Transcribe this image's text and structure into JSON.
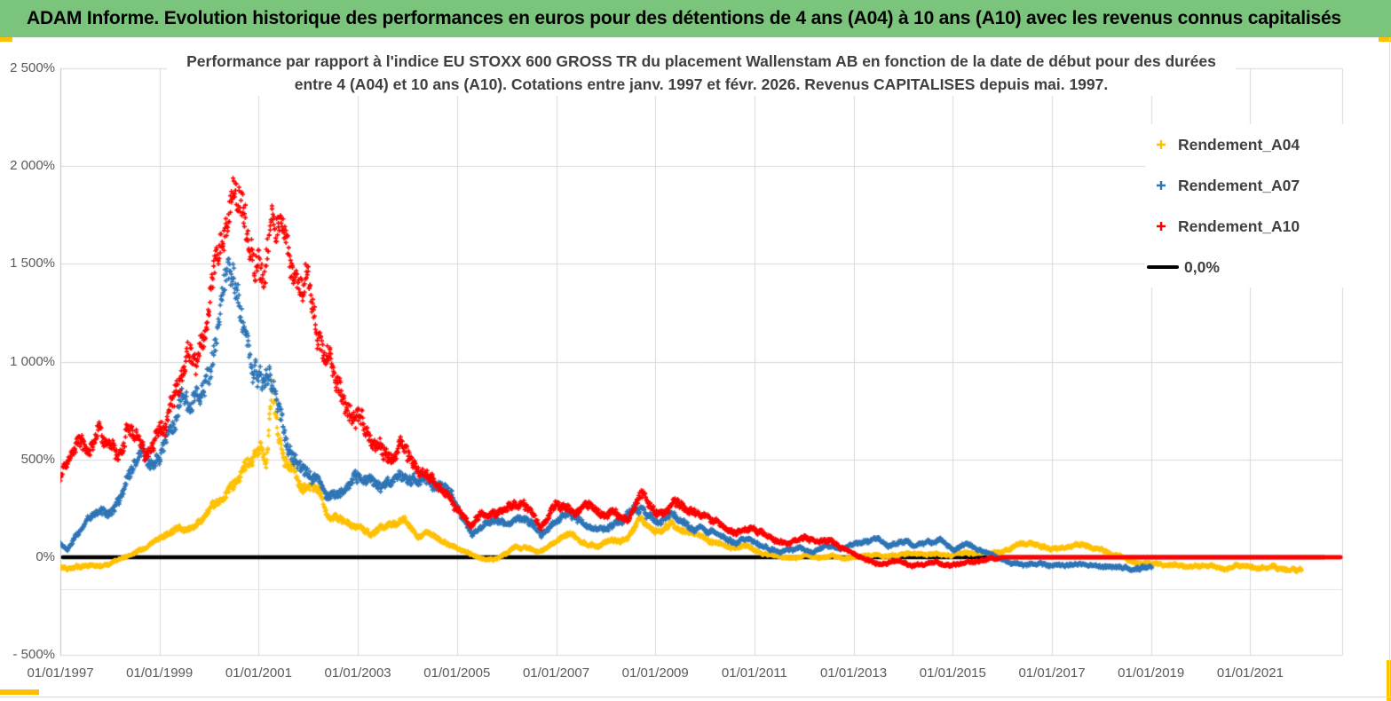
{
  "header": {
    "title": "ADAM Informe. Evolution historique des performances en euros pour des détentions de 4 ans (A04) à 10 ans (A10) avec les revenus connus capitalisés"
  },
  "accents": {
    "gold": "#FFC000",
    "header_green": "#7AC47C"
  },
  "chart_data": {
    "type": "scatter",
    "title_line1": "Performance par rapport à l'indice EU STOXX 600 GROSS TR  du placement Wallenstam AB en fonction de la date de début pour des durées",
    "title_line2": "entre 4 (A04) et 10 ans (A10). Cotations entre janv. 1997 et févr. 2026. Revenus CAPITALISES depuis mai. 1997.",
    "grid": "on",
    "legend_position": "right",
    "x_axis": {
      "tick_years": [
        1997,
        1999,
        2001,
        2003,
        2005,
        2007,
        2009,
        2011,
        2013,
        2015,
        2017,
        2019,
        2021
      ],
      "tick_labels": [
        "01/01/1997",
        "01/01/1999",
        "01/01/2001",
        "01/01/2003",
        "01/01/2005",
        "01/01/2007",
        "01/01/2009",
        "01/01/2011",
        "01/01/2013",
        "01/01/2015",
        "01/01/2017",
        "01/01/2019",
        "01/01/2021"
      ],
      "min_year": 1997.0,
      "max_year": 2022.86
    },
    "y_axis": {
      "tick_values": [
        2500,
        2000,
        1500,
        1000,
        500,
        0,
        -500
      ],
      "tick_labels": [
        "2 500%",
        "2 000%",
        "1 500%",
        "1 000%",
        "500%",
        "0%",
        "- 500%"
      ],
      "min": -500,
      "max": 2500,
      "extra_faint_line_value": -163
    },
    "legend": [
      {
        "label": "Rendement_A04",
        "marker": "plus",
        "color": "#FFC000"
      },
      {
        "label": "Rendement_A07",
        "marker": "plus",
        "color": "#2E75B6"
      },
      {
        "label": "Rendement_A10",
        "marker": "plus",
        "color": "#FF0000"
      },
      {
        "label": "0,0%",
        "marker": "line",
        "color": "#000000"
      }
    ],
    "reference_line": {
      "label": "0,0%",
      "value": 0,
      "from_year": 1997.05,
      "to_year": 2022.5,
      "color": "#000000"
    },
    "series": [
      {
        "name": "Rendement_A04",
        "color": "#FFC000",
        "points": [
          [
            1997.0,
            -55
          ],
          [
            1997.3,
            -48
          ],
          [
            1997.6,
            -42
          ],
          [
            1997.9,
            -35
          ],
          [
            1998.1,
            -22
          ],
          [
            1998.3,
            -5
          ],
          [
            1998.55,
            35
          ],
          [
            1998.8,
            60
          ],
          [
            1999.0,
            90
          ],
          [
            1999.2,
            125
          ],
          [
            1999.4,
            160
          ],
          [
            1999.55,
            145
          ],
          [
            1999.75,
            175
          ],
          [
            2000.0,
            225
          ],
          [
            2000.2,
            280
          ],
          [
            2000.4,
            345
          ],
          [
            2000.6,
            415
          ],
          [
            2000.8,
            465
          ],
          [
            2000.95,
            520
          ],
          [
            2001.05,
            590
          ],
          [
            2001.15,
            470
          ],
          [
            2001.27,
            860
          ],
          [
            2001.32,
            760
          ],
          [
            2001.42,
            610
          ],
          [
            2001.55,
            500
          ],
          [
            2001.7,
            450
          ],
          [
            2001.87,
            335
          ],
          [
            2002.05,
            385
          ],
          [
            2002.25,
            295
          ],
          [
            2002.45,
            195
          ],
          [
            2002.65,
            205
          ],
          [
            2002.85,
            160
          ],
          [
            2003.05,
            170
          ],
          [
            2003.25,
            120
          ],
          [
            2003.5,
            150
          ],
          [
            2003.75,
            165
          ],
          [
            2003.95,
            200
          ],
          [
            2004.2,
            115
          ],
          [
            2004.4,
            130
          ],
          [
            2004.65,
            90
          ],
          [
            2004.9,
            60
          ],
          [
            2005.15,
            25
          ],
          [
            2005.35,
            5
          ],
          [
            2005.55,
            -15
          ],
          [
            2005.8,
            -5
          ],
          [
            2006.0,
            25
          ],
          [
            2006.2,
            45
          ],
          [
            2006.4,
            55
          ],
          [
            2006.6,
            25
          ],
          [
            2006.9,
            60
          ],
          [
            2007.1,
            95
          ],
          [
            2007.3,
            110
          ],
          [
            2007.6,
            65
          ],
          [
            2007.9,
            65
          ],
          [
            2008.15,
            90
          ],
          [
            2008.4,
            85
          ],
          [
            2008.72,
            215
          ],
          [
            2009.0,
            130
          ],
          [
            2009.33,
            190
          ],
          [
            2009.6,
            130
          ],
          [
            2009.85,
            110
          ],
          [
            2010.1,
            90
          ],
          [
            2010.45,
            45
          ],
          [
            2010.8,
            60
          ],
          [
            2011.1,
            30
          ],
          [
            2011.45,
            8
          ],
          [
            2011.7,
            -8
          ],
          [
            2012.0,
            15
          ],
          [
            2012.3,
            -5
          ],
          [
            2012.55,
            12
          ],
          [
            2012.8,
            -8
          ],
          [
            2013.05,
            2
          ],
          [
            2013.35,
            12
          ],
          [
            2013.6,
            5
          ],
          [
            2013.9,
            12
          ],
          [
            2014.15,
            22
          ],
          [
            2014.4,
            12
          ],
          [
            2014.7,
            18
          ],
          [
            2014.95,
            12
          ],
          [
            2015.2,
            20
          ],
          [
            2015.5,
            15
          ],
          [
            2015.75,
            20
          ],
          [
            2016.0,
            28
          ],
          [
            2016.3,
            55
          ],
          [
            2016.55,
            70
          ],
          [
            2016.8,
            55
          ],
          [
            2017.1,
            45
          ],
          [
            2017.35,
            52
          ],
          [
            2017.62,
            70
          ],
          [
            2017.9,
            48
          ],
          [
            2018.15,
            22
          ],
          [
            2018.35,
            5
          ],
          [
            2018.55,
            -18
          ],
          [
            2018.8,
            -30
          ],
          [
            2019.05,
            -35
          ],
          [
            2019.4,
            -40
          ],
          [
            2019.8,
            -45
          ],
          [
            2020.15,
            -40
          ],
          [
            2020.5,
            -50
          ],
          [
            2020.85,
            -45
          ],
          [
            2021.2,
            -55
          ],
          [
            2021.6,
            -60
          ],
          [
            2022.05,
            -65
          ]
        ]
      },
      {
        "name": "Rendement_A07",
        "color": "#2E75B6",
        "points": [
          [
            1997.0,
            70
          ],
          [
            1997.15,
            35
          ],
          [
            1997.35,
            120
          ],
          [
            1997.55,
            190
          ],
          [
            1997.75,
            250
          ],
          [
            1997.95,
            230
          ],
          [
            1998.2,
            300
          ],
          [
            1998.45,
            420
          ],
          [
            1998.65,
            520
          ],
          [
            1998.85,
            460
          ],
          [
            1999.05,
            560
          ],
          [
            1999.25,
            680
          ],
          [
            1999.45,
            870
          ],
          [
            1999.6,
            760
          ],
          [
            1999.8,
            820
          ],
          [
            2000.0,
            930
          ],
          [
            2000.15,
            1120
          ],
          [
            2000.3,
            1420
          ],
          [
            2000.38,
            1540
          ],
          [
            2000.5,
            1440
          ],
          [
            2000.62,
            1220
          ],
          [
            2000.75,
            1020
          ],
          [
            2000.9,
            950
          ],
          [
            2001.05,
            900
          ],
          [
            2001.15,
            1000
          ],
          [
            2001.25,
            950
          ],
          [
            2001.4,
            760
          ],
          [
            2001.6,
            560
          ],
          [
            2001.8,
            480
          ],
          [
            2002.0,
            440
          ],
          [
            2002.2,
            390
          ],
          [
            2002.45,
            310
          ],
          [
            2002.7,
            330
          ],
          [
            2002.95,
            415
          ],
          [
            2003.2,
            395
          ],
          [
            2003.55,
            350
          ],
          [
            2003.85,
            430
          ],
          [
            2004.1,
            390
          ],
          [
            2004.4,
            370
          ],
          [
            2004.65,
            345
          ],
          [
            2004.9,
            300
          ],
          [
            2005.1,
            210
          ],
          [
            2005.3,
            115
          ],
          [
            2005.55,
            160
          ],
          [
            2005.8,
            185
          ],
          [
            2006.05,
            160
          ],
          [
            2006.35,
            205
          ],
          [
            2006.7,
            120
          ],
          [
            2007.0,
            185
          ],
          [
            2007.3,
            225
          ],
          [
            2007.65,
            150
          ],
          [
            2007.95,
            140
          ],
          [
            2008.3,
            185
          ],
          [
            2008.72,
            260
          ],
          [
            2009.0,
            180
          ],
          [
            2009.35,
            230
          ],
          [
            2009.65,
            160
          ],
          [
            2009.95,
            140
          ],
          [
            2010.3,
            110
          ],
          [
            2010.65,
            70
          ],
          [
            2010.9,
            95
          ],
          [
            2011.2,
            60
          ],
          [
            2011.55,
            20
          ],
          [
            2011.9,
            55
          ],
          [
            2012.2,
            30
          ],
          [
            2012.45,
            65
          ],
          [
            2012.7,
            40
          ],
          [
            2013.0,
            65
          ],
          [
            2013.25,
            85
          ],
          [
            2013.45,
            95
          ],
          [
            2013.7,
            60
          ],
          [
            2013.95,
            85
          ],
          [
            2014.2,
            65
          ],
          [
            2014.5,
            75
          ],
          [
            2014.7,
            95
          ],
          [
            2015.0,
            40
          ],
          [
            2015.3,
            62
          ],
          [
            2015.55,
            30
          ],
          [
            2015.85,
            10
          ],
          [
            2016.1,
            -20
          ],
          [
            2016.4,
            -42
          ],
          [
            2016.65,
            -30
          ],
          [
            2016.9,
            -42
          ],
          [
            2017.25,
            -35
          ],
          [
            2017.6,
            -30
          ],
          [
            2018.0,
            -42
          ],
          [
            2018.3,
            -45
          ],
          [
            2018.55,
            -52
          ],
          [
            2018.8,
            -55
          ],
          [
            2019.03,
            -48
          ]
        ]
      },
      {
        "name": "Rendement_A10",
        "color": "#FF0000",
        "flat_zero_segment": [
          2015.98,
          2022.82
        ],
        "points": [
          [
            1997.0,
            400
          ],
          [
            1997.15,
            470
          ],
          [
            1997.38,
            620
          ],
          [
            1997.6,
            530
          ],
          [
            1997.8,
            640
          ],
          [
            1998.0,
            560
          ],
          [
            1998.15,
            480
          ],
          [
            1998.35,
            640
          ],
          [
            1998.55,
            660
          ],
          [
            1998.72,
            540
          ],
          [
            1998.9,
            640
          ],
          [
            1999.1,
            700
          ],
          [
            1999.35,
            900
          ],
          [
            1999.55,
            1020
          ],
          [
            1999.75,
            950
          ],
          [
            2000.0,
            1260
          ],
          [
            2000.15,
            1500
          ],
          [
            2000.3,
            1680
          ],
          [
            2000.45,
            1800
          ],
          [
            2000.55,
            1900
          ],
          [
            2000.68,
            1760
          ],
          [
            2000.8,
            1550
          ],
          [
            2000.95,
            1420
          ],
          [
            2001.1,
            1380
          ],
          [
            2001.25,
            1720
          ],
          [
            2001.38,
            1740
          ],
          [
            2001.55,
            1640
          ],
          [
            2001.7,
            1430
          ],
          [
            2001.85,
            1340
          ],
          [
            2002.0,
            1440
          ],
          [
            2002.2,
            1130
          ],
          [
            2002.42,
            960
          ],
          [
            2002.65,
            840
          ],
          [
            2002.9,
            730
          ],
          [
            2003.1,
            690
          ],
          [
            2003.3,
            590
          ],
          [
            2003.65,
            480
          ],
          [
            2003.95,
            560
          ],
          [
            2004.2,
            430
          ],
          [
            2004.5,
            390
          ],
          [
            2004.8,
            310
          ],
          [
            2005.1,
            200
          ],
          [
            2005.25,
            150
          ],
          [
            2005.5,
            230
          ],
          [
            2005.8,
            210
          ],
          [
            2006.05,
            260
          ],
          [
            2006.35,
            295
          ],
          [
            2006.7,
            150
          ],
          [
            2007.0,
            290
          ],
          [
            2007.35,
            235
          ],
          [
            2007.68,
            270
          ],
          [
            2008.0,
            205
          ],
          [
            2008.15,
            245
          ],
          [
            2008.45,
            195
          ],
          [
            2008.72,
            330
          ],
          [
            2009.0,
            235
          ],
          [
            2009.38,
            285
          ],
          [
            2009.65,
            225
          ],
          [
            2009.95,
            205
          ],
          [
            2010.3,
            165
          ],
          [
            2010.65,
            120
          ],
          [
            2010.9,
            155
          ],
          [
            2011.1,
            130
          ],
          [
            2011.35,
            90
          ],
          [
            2011.7,
            62
          ],
          [
            2012.0,
            110
          ],
          [
            2012.28,
            72
          ],
          [
            2012.55,
            92
          ],
          [
            2012.8,
            42
          ],
          [
            2013.0,
            20
          ],
          [
            2013.25,
            -12
          ],
          [
            2013.5,
            -32
          ],
          [
            2013.85,
            -22
          ],
          [
            2014.2,
            -42
          ],
          [
            2014.6,
            -30
          ],
          [
            2014.95,
            -42
          ],
          [
            2015.3,
            -30
          ],
          [
            2015.65,
            -18
          ],
          [
            2015.95,
            -5
          ]
        ]
      }
    ]
  }
}
